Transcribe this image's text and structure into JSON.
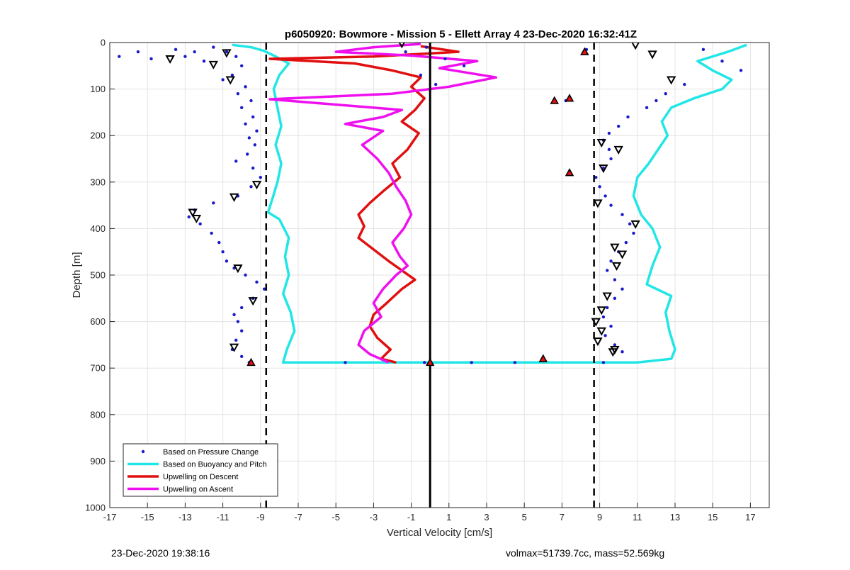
{
  "footer": {
    "timestamp": "23-Dec-2020 19:38:16",
    "params": "volmax=51739.7cc, mass=52.569kg"
  },
  "chart_data": {
    "type": "line",
    "title": "p6050920: Bowmore - Mission 5 - Ellett Array 4 23-Dec-2020 16:32:41Z",
    "xlabel": "Vertical Velocity [cm/s]",
    "ylabel": "Depth [m]",
    "xlim": [
      -17,
      18
    ],
    "ylim": [
      1000,
      0
    ],
    "y_reversed": true,
    "xticks": [
      -17,
      -15,
      -13,
      -11,
      -9,
      -7,
      -5,
      -3,
      -1,
      1,
      3,
      5,
      7,
      9,
      11,
      13,
      15,
      17
    ],
    "yticks": [
      0,
      100,
      200,
      300,
      400,
      500,
      600,
      700,
      800,
      900,
      1000
    ],
    "grid": true,
    "legend_position": "bottom-left",
    "colors": {
      "pressure": "#1a1acc",
      "buoyancy": "#22e6e6",
      "descent": "#e01010",
      "ascent": "#ee10ee"
    },
    "reference_lines": {
      "solid_x": 0,
      "dashed_x": [
        -8.7,
        8.7
      ]
    },
    "series": [
      {
        "name": "Based on Pressure Change",
        "style": "dots",
        "color": "#1a1acc",
        "points": [
          [
            -16.5,
            30
          ],
          [
            -15.5,
            20
          ],
          [
            -14.8,
            35
          ],
          [
            -13.5,
            15
          ],
          [
            -13,
            30
          ],
          [
            -12.5,
            20
          ],
          [
            -12,
            40
          ],
          [
            -11.5,
            10
          ],
          [
            -10.8,
            20
          ],
          [
            -10.3,
            30
          ],
          [
            -10,
            50
          ],
          [
            -10.5,
            70
          ],
          [
            -11,
            80
          ],
          [
            -9.8,
            95
          ],
          [
            -10.2,
            110
          ],
          [
            -9.5,
            125
          ],
          [
            -10,
            140
          ],
          [
            -9.4,
            160
          ],
          [
            -9.8,
            175
          ],
          [
            -9.2,
            190
          ],
          [
            -9.6,
            205
          ],
          [
            -9.3,
            220
          ],
          [
            -9.7,
            240
          ],
          [
            -10.3,
            255
          ],
          [
            -9.4,
            270
          ],
          [
            -9,
            290
          ],
          [
            -9.5,
            310
          ],
          [
            -10.2,
            330
          ],
          [
            -11.5,
            345
          ],
          [
            -12.5,
            360
          ],
          [
            -12.8,
            375
          ],
          [
            -12.2,
            390
          ],
          [
            -11.6,
            410
          ],
          [
            -11.2,
            430
          ],
          [
            -11,
            450
          ],
          [
            -10.8,
            470
          ],
          [
            -10.4,
            485
          ],
          [
            -9.8,
            500
          ],
          [
            -9.2,
            515
          ],
          [
            -8.8,
            530
          ],
          [
            -9.4,
            550
          ],
          [
            -10,
            570
          ],
          [
            -10.4,
            585
          ],
          [
            -10.2,
            600
          ],
          [
            -10,
            620
          ],
          [
            -10.3,
            640
          ],
          [
            -10.5,
            660
          ],
          [
            -10,
            675
          ],
          [
            -9.6,
            688
          ],
          [
            14.5,
            15
          ],
          [
            15.5,
            40
          ],
          [
            16.5,
            60
          ],
          [
            13.5,
            90
          ],
          [
            12.5,
            110
          ],
          [
            12,
            125
          ],
          [
            11.5,
            140
          ],
          [
            10.5,
            160
          ],
          [
            10,
            180
          ],
          [
            9.5,
            195
          ],
          [
            9.2,
            210
          ],
          [
            9.5,
            230
          ],
          [
            9.6,
            250
          ],
          [
            9.2,
            270
          ],
          [
            8.8,
            290
          ],
          [
            9,
            310
          ],
          [
            9.3,
            330
          ],
          [
            9.6,
            350
          ],
          [
            10.2,
            370
          ],
          [
            10.6,
            390
          ],
          [
            10.8,
            410
          ],
          [
            10.4,
            430
          ],
          [
            10,
            450
          ],
          [
            9.6,
            470
          ],
          [
            9.4,
            490
          ],
          [
            9.8,
            510
          ],
          [
            10.2,
            530
          ],
          [
            9.8,
            550
          ],
          [
            9.4,
            570
          ],
          [
            9.2,
            590
          ],
          [
            9.6,
            610
          ],
          [
            9.3,
            630
          ],
          [
            9.8,
            650
          ],
          [
            10.2,
            665
          ],
          [
            9.2,
            688
          ],
          [
            -0.2,
            10
          ],
          [
            -1.3,
            20
          ],
          [
            0.8,
            35
          ],
          [
            1.8,
            50
          ],
          [
            -0.5,
            70
          ],
          [
            0.3,
            90
          ],
          [
            2.2,
            688
          ],
          [
            4.5,
            688
          ],
          [
            -0.3,
            688
          ],
          [
            -4.5,
            688
          ],
          [
            8.3,
            15
          ],
          [
            7.2,
            125
          ]
        ]
      },
      {
        "name": "Based on Buoyancy and Pitch",
        "style": "line",
        "color": "#22e6e6",
        "points": [
          [
            -10.5,
            5
          ],
          [
            -9.5,
            10
          ],
          [
            -8.8,
            18
          ],
          [
            -8.2,
            30
          ],
          [
            -7.5,
            45
          ],
          [
            -8,
            70
          ],
          [
            -8.3,
            100
          ],
          [
            -8.1,
            140
          ],
          [
            -7.9,
            180
          ],
          [
            -8.2,
            220
          ],
          [
            -7.9,
            260
          ],
          [
            -8.1,
            300
          ],
          [
            -8.4,
            340
          ],
          [
            -8.6,
            365
          ],
          [
            -8,
            380
          ],
          [
            -7.5,
            420
          ],
          [
            -7.7,
            460
          ],
          [
            -7.5,
            500
          ],
          [
            -7.8,
            540
          ],
          [
            -7.4,
            580
          ],
          [
            -7.2,
            620
          ],
          [
            -7.6,
            660
          ],
          [
            -7.8,
            688
          ],
          [
            6,
            688
          ],
          [
            11,
            688
          ],
          [
            12.8,
            680
          ],
          [
            13,
            660
          ],
          [
            12.7,
            620
          ],
          [
            12.5,
            580
          ],
          [
            12.8,
            545
          ],
          [
            11.5,
            520
          ],
          [
            11.8,
            480
          ],
          [
            12.2,
            440
          ],
          [
            11.8,
            400
          ],
          [
            11.2,
            370
          ],
          [
            10.8,
            330
          ],
          [
            11,
            290
          ],
          [
            11.6,
            260
          ],
          [
            12.1,
            230
          ],
          [
            12.6,
            200
          ],
          [
            12.3,
            170
          ],
          [
            12.8,
            140
          ],
          [
            14,
            120
          ],
          [
            15.5,
            100
          ],
          [
            16,
            80
          ],
          [
            15,
            60
          ],
          [
            14.2,
            40
          ],
          [
            15.8,
            20
          ],
          [
            16.8,
            5
          ]
        ]
      },
      {
        "name": "Upwelling on Descent",
        "style": "line",
        "color": "#e01010",
        "points": [
          [
            -0.5,
            8
          ],
          [
            1.5,
            20
          ],
          [
            -3,
            30
          ],
          [
            -8.5,
            35
          ],
          [
            -4,
            45
          ],
          [
            -2,
            60
          ],
          [
            -0.5,
            75
          ],
          [
            -1,
            95
          ],
          [
            -0.3,
            120
          ],
          [
            -0.8,
            145
          ],
          [
            -1.5,
            170
          ],
          [
            -0.6,
            195
          ],
          [
            -1.2,
            230
          ],
          [
            -2,
            260
          ],
          [
            -1.6,
            290
          ],
          [
            -2.5,
            320
          ],
          [
            -3.2,
            345
          ],
          [
            -3.8,
            370
          ],
          [
            -3.5,
            395
          ],
          [
            -3.8,
            420
          ],
          [
            -3,
            445
          ],
          [
            -2.2,
            470
          ],
          [
            -1.5,
            490
          ],
          [
            -0.8,
            510
          ],
          [
            -1.5,
            530
          ],
          [
            -2.3,
            560
          ],
          [
            -3,
            585
          ],
          [
            -3.2,
            610
          ],
          [
            -2.8,
            635
          ],
          [
            -2.1,
            660
          ],
          [
            -2.6,
            680
          ],
          [
            -1.8,
            688
          ]
        ]
      },
      {
        "name": "Upwelling on Ascent",
        "style": "line",
        "color": "#ee10ee",
        "points": [
          [
            -2.2,
            688
          ],
          [
            -3.2,
            670
          ],
          [
            -3.8,
            650
          ],
          [
            -3.5,
            620
          ],
          [
            -2.6,
            590
          ],
          [
            -3,
            560
          ],
          [
            -2.5,
            530
          ],
          [
            -1.8,
            500
          ],
          [
            -1.2,
            480
          ],
          [
            -1.6,
            460
          ],
          [
            -2,
            430
          ],
          [
            -1.4,
            400
          ],
          [
            -1,
            370
          ],
          [
            -1.3,
            340
          ],
          [
            -1.8,
            310
          ],
          [
            -2.2,
            280
          ],
          [
            -2.8,
            250
          ],
          [
            -3.6,
            220
          ],
          [
            -2.5,
            190
          ],
          [
            -4.5,
            175
          ],
          [
            -2.5,
            160
          ],
          [
            -1.5,
            145
          ],
          [
            -8.5,
            122
          ],
          [
            -2,
            110
          ],
          [
            1,
            95
          ],
          [
            3.5,
            75
          ],
          [
            0.5,
            55
          ],
          [
            2.5,
            40
          ],
          [
            -1,
            28
          ],
          [
            -5,
            20
          ],
          [
            -3,
            10
          ],
          [
            -0.5,
            3
          ]
        ]
      },
      {
        "name": "",
        "style": "marker-triangle-down",
        "color": "#000000",
        "points": [
          [
            -10.8,
            22
          ],
          [
            -13.8,
            35
          ],
          [
            -11.5,
            47
          ],
          [
            -10.6,
            80
          ],
          [
            -9.2,
            305
          ],
          [
            -10.4,
            332
          ],
          [
            -12.6,
            365
          ],
          [
            -12.4,
            378
          ],
          [
            -10.2,
            485
          ],
          [
            -9.4,
            555
          ],
          [
            -10.4,
            655
          ],
          [
            -1.5,
            2
          ],
          [
            10.9,
            5
          ],
          [
            11.8,
            25
          ],
          [
            12.8,
            80
          ],
          [
            10,
            230
          ],
          [
            9.2,
            270
          ],
          [
            9.1,
            215
          ],
          [
            8.9,
            345
          ],
          [
            10.9,
            390
          ],
          [
            9.8,
            440
          ],
          [
            10.2,
            455
          ],
          [
            9.9,
            480
          ],
          [
            9.4,
            545
          ],
          [
            9.1,
            575
          ],
          [
            8.8,
            600
          ],
          [
            9.1,
            620
          ],
          [
            8.9,
            642
          ],
          [
            9.8,
            660
          ],
          [
            9.7,
            665
          ]
        ]
      },
      {
        "name": "",
        "style": "marker-triangle-up",
        "color": "#e01010",
        "points": [
          [
            8.2,
            20
          ],
          [
            7.4,
            120
          ],
          [
            6.6,
            125
          ],
          [
            7.4,
            280
          ],
          [
            6,
            680
          ],
          [
            0,
            688
          ],
          [
            -9.5,
            688
          ]
        ]
      }
    ]
  }
}
